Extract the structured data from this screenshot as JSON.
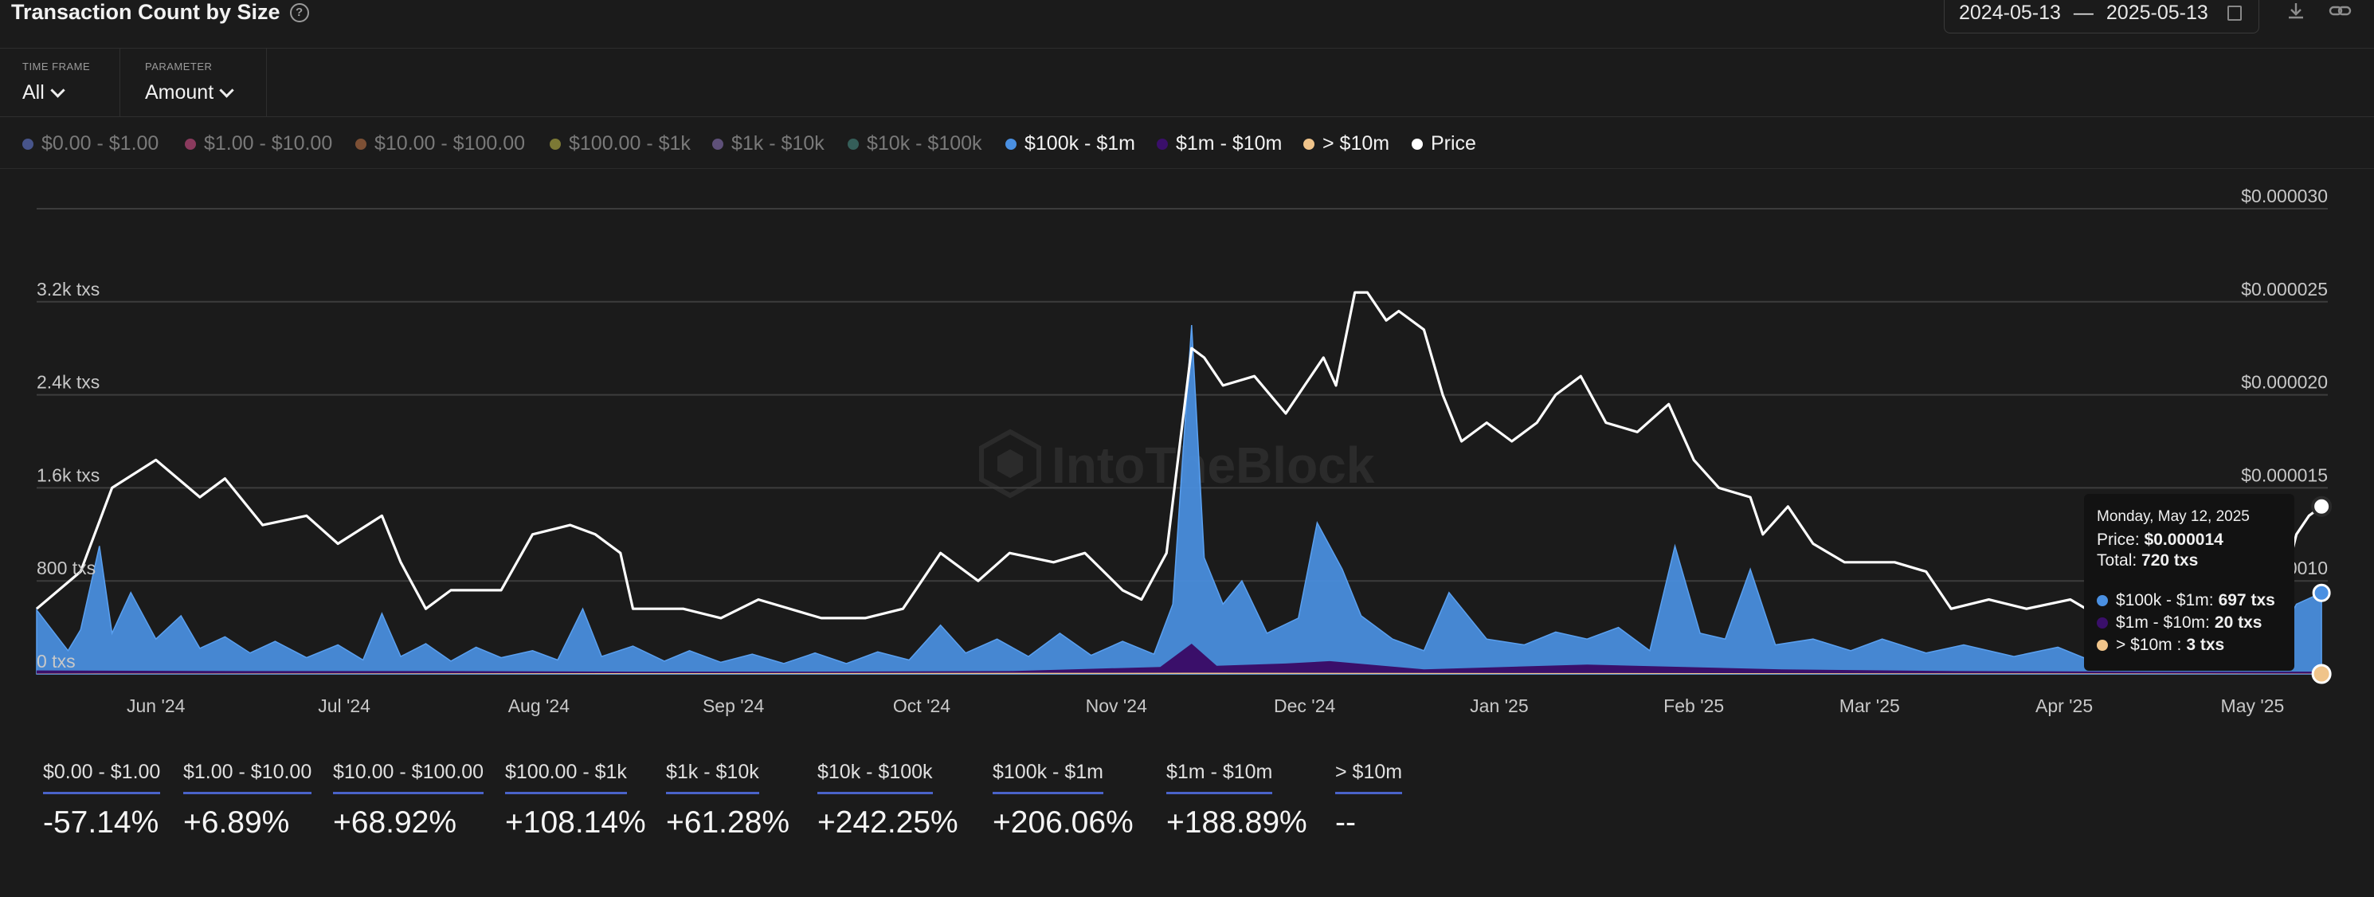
{
  "header": {
    "title": "Transaction Count by Size",
    "date_from": "2024-05-13",
    "date_sep": "—",
    "date_to": "2025-05-13"
  },
  "controls": {
    "time_frame_label": "TIME FRAME",
    "time_frame_value": "All",
    "parameter_label": "PARAMETER",
    "parameter_value": "Amount"
  },
  "legend": [
    {
      "label": "$0.00 - $1.00",
      "color": "#4f5f9e",
      "active": false
    },
    {
      "label": "$1.00 - $10.00",
      "color": "#9e3f68",
      "active": false
    },
    {
      "label": "$10.00 - $100.00",
      "color": "#8f5a3a",
      "active": false
    },
    {
      "label": "$100.00 - $1k",
      "color": "#8e8a3a",
      "active": false
    },
    {
      "label": "$1k - $10k",
      "color": "#6a5a8a",
      "active": false
    },
    {
      "label": "$10k - $100k",
      "color": "#3a6a64",
      "active": false
    },
    {
      "label": "$100k - $1m",
      "color": "#4a90e2",
      "active": true
    },
    {
      "label": "$1m - $10m",
      "color": "#3a0f6a",
      "active": true
    },
    {
      "label": "> $10m",
      "color": "#f0c48a",
      "active": true
    },
    {
      "label": "Price",
      "color": "#ffffff",
      "active": true
    }
  ],
  "tooltip": {
    "date": "Monday, May 12, 2025",
    "price_label": "Price:",
    "price_value": "$0.000014",
    "total_label": "Total:",
    "total_value": "720 txs",
    "rows": [
      {
        "label": "$100k - $1m:",
        "value": "697 txs",
        "color": "#4a90e2"
      },
      {
        "label": "$1m - $10m:",
        "value": "20 txs",
        "color": "#3a0f6a"
      },
      {
        "label": "> $10m :",
        "value": "3 txs",
        "color": "#f0c48a"
      }
    ]
  },
  "chart_data": {
    "type": "area",
    "watermark": "IntoTheBlock",
    "x_labels": [
      "Jun '24",
      "Jul '24",
      "Aug '24",
      "Sep '24",
      "Oct '24",
      "Nov '24",
      "Dec '24",
      "Jan '25",
      "Feb '25",
      "Mar '25",
      "Apr '25",
      "May '25"
    ],
    "x_range": [
      "2024-05-13",
      "2025-05-13"
    ],
    "y_left": {
      "ticks": [
        "0 txs",
        "800 txs",
        "1.6k txs",
        "2.4k txs",
        "3.2k txs"
      ],
      "range": [
        0,
        4000
      ]
    },
    "y_right": {
      "ticks": [
        "$0.000010",
        "$0.000015",
        "$0.000020",
        "$0.000025",
        "$0.000030"
      ],
      "range": [
        5e-06,
        3e-05
      ]
    },
    "series": [
      {
        "name": "$100k - $1m",
        "type": "area",
        "color": "#4a90e2",
        "points": [
          [
            "2024-05-13",
            550
          ],
          [
            "2024-05-18",
            200
          ],
          [
            "2024-05-20",
            380
          ],
          [
            "2024-05-23",
            1100
          ],
          [
            "2024-05-25",
            350
          ],
          [
            "2024-05-28",
            700
          ],
          [
            "2024-06-01",
            300
          ],
          [
            "2024-06-05",
            500
          ],
          [
            "2024-06-08",
            220
          ],
          [
            "2024-06-12",
            320
          ],
          [
            "2024-06-16",
            180
          ],
          [
            "2024-06-20",
            280
          ],
          [
            "2024-06-25",
            140
          ],
          [
            "2024-06-30",
            250
          ],
          [
            "2024-07-04",
            120
          ],
          [
            "2024-07-07",
            520
          ],
          [
            "2024-07-10",
            150
          ],
          [
            "2024-07-14",
            260
          ],
          [
            "2024-07-18",
            110
          ],
          [
            "2024-07-22",
            230
          ],
          [
            "2024-07-26",
            140
          ],
          [
            "2024-07-31",
            200
          ],
          [
            "2024-08-04",
            120
          ],
          [
            "2024-08-08",
            560
          ],
          [
            "2024-08-11",
            150
          ],
          [
            "2024-08-16",
            240
          ],
          [
            "2024-08-21",
            110
          ],
          [
            "2024-08-25",
            200
          ],
          [
            "2024-08-30",
            100
          ],
          [
            "2024-09-04",
            170
          ],
          [
            "2024-09-09",
            90
          ],
          [
            "2024-09-14",
            180
          ],
          [
            "2024-09-19",
            90
          ],
          [
            "2024-09-24",
            190
          ],
          [
            "2024-09-29",
            120
          ],
          [
            "2024-10-04",
            420
          ],
          [
            "2024-10-08",
            180
          ],
          [
            "2024-10-13",
            300
          ],
          [
            "2024-10-18",
            150
          ],
          [
            "2024-10-23",
            350
          ],
          [
            "2024-10-28",
            160
          ],
          [
            "2024-11-02",
            280
          ],
          [
            "2024-11-07",
            170
          ],
          [
            "2024-11-10",
            600
          ],
          [
            "2024-11-13",
            3000
          ],
          [
            "2024-11-15",
            1000
          ],
          [
            "2024-11-18",
            600
          ],
          [
            "2024-11-21",
            800
          ],
          [
            "2024-11-25",
            350
          ],
          [
            "2024-11-30",
            480
          ],
          [
            "2024-12-03",
            1300
          ],
          [
            "2024-12-07",
            900
          ],
          [
            "2024-12-10",
            500
          ],
          [
            "2024-12-15",
            300
          ],
          [
            "2024-12-20",
            200
          ],
          [
            "2024-12-24",
            700
          ],
          [
            "2024-12-30",
            300
          ],
          [
            "2025-01-05",
            250
          ],
          [
            "2025-01-10",
            360
          ],
          [
            "2025-01-15",
            300
          ],
          [
            "2025-01-20",
            400
          ],
          [
            "2025-01-25",
            200
          ],
          [
            "2025-01-29",
            1100
          ],
          [
            "2025-02-02",
            350
          ],
          [
            "2025-02-06",
            300
          ],
          [
            "2025-02-10",
            900
          ],
          [
            "2025-02-14",
            250
          ],
          [
            "2025-02-20",
            300
          ],
          [
            "2025-02-26",
            200
          ],
          [
            "2025-03-03",
            300
          ],
          [
            "2025-03-10",
            180
          ],
          [
            "2025-03-16",
            250
          ],
          [
            "2025-03-24",
            150
          ],
          [
            "2025-03-31",
            230
          ],
          [
            "2025-04-05",
            120
          ],
          [
            "2025-04-12",
            160
          ],
          [
            "2025-04-20",
            110
          ],
          [
            "2025-04-26",
            140
          ],
          [
            "2025-05-03",
            100
          ],
          [
            "2025-05-08",
            600
          ],
          [
            "2025-05-12",
            697
          ]
        ]
      },
      {
        "name": "$1m - $10m",
        "type": "area",
        "color": "#3a0f6a",
        "points": [
          [
            "2024-05-13",
            30
          ],
          [
            "2024-06-15",
            25
          ],
          [
            "2024-07-15",
            25
          ],
          [
            "2024-08-15",
            20
          ],
          [
            "2024-09-15",
            20
          ],
          [
            "2024-10-15",
            25
          ],
          [
            "2024-11-08",
            60
          ],
          [
            "2024-11-13",
            260
          ],
          [
            "2024-11-17",
            70
          ],
          [
            "2024-11-28",
            90
          ],
          [
            "2024-12-05",
            110
          ],
          [
            "2024-12-20",
            40
          ],
          [
            "2025-01-15",
            80
          ],
          [
            "2025-02-15",
            40
          ],
          [
            "2025-03-15",
            25
          ],
          [
            "2025-04-15",
            20
          ],
          [
            "2025-05-12",
            20
          ]
        ]
      },
      {
        "name": "> $10m",
        "type": "area",
        "color": "#f0c48a",
        "points": [
          [
            "2024-05-13",
            3
          ],
          [
            "2024-11-13",
            10
          ],
          [
            "2025-05-12",
            3
          ]
        ]
      },
      {
        "name": "Price",
        "type": "line",
        "axis": "right",
        "color": "#ffffff",
        "points": [
          [
            "2024-05-13",
            8.5e-06
          ],
          [
            "2024-05-20",
            1.05e-05
          ],
          [
            "2024-05-25",
            1.5e-05
          ],
          [
            "2024-06-01",
            1.65e-05
          ],
          [
            "2024-06-08",
            1.45e-05
          ],
          [
            "2024-06-12",
            1.55e-05
          ],
          [
            "2024-06-18",
            1.3e-05
          ],
          [
            "2024-06-25",
            1.35e-05
          ],
          [
            "2024-06-30",
            1.2e-05
          ],
          [
            "2024-07-07",
            1.35e-05
          ],
          [
            "2024-07-10",
            1.1e-05
          ],
          [
            "2024-07-14",
            8.5e-06
          ],
          [
            "2024-07-18",
            9.5e-06
          ],
          [
            "2024-07-26",
            9.5e-06
          ],
          [
            "2024-07-31",
            1.25e-05
          ],
          [
            "2024-08-06",
            1.3e-05
          ],
          [
            "2024-08-10",
            1.25e-05
          ],
          [
            "2024-08-14",
            1.15e-05
          ],
          [
            "2024-08-16",
            8.5e-06
          ],
          [
            "2024-08-24",
            8.5e-06
          ],
          [
            "2024-08-30",
            8e-06
          ],
          [
            "2024-09-05",
            9e-06
          ],
          [
            "2024-09-15",
            8e-06
          ],
          [
            "2024-09-22",
            8e-06
          ],
          [
            "2024-09-28",
            8.5e-06
          ],
          [
            "2024-10-04",
            1.15e-05
          ],
          [
            "2024-10-10",
            1e-05
          ],
          [
            "2024-10-15",
            1.15e-05
          ],
          [
            "2024-10-22",
            1.1e-05
          ],
          [
            "2024-10-27",
            1.15e-05
          ],
          [
            "2024-11-02",
            9.5e-06
          ],
          [
            "2024-11-05",
            9e-06
          ],
          [
            "2024-11-09",
            1.15e-05
          ],
          [
            "2024-11-13",
            2.25e-05
          ],
          [
            "2024-11-15",
            2.2e-05
          ],
          [
            "2024-11-18",
            2.05e-05
          ],
          [
            "2024-11-23",
            2.1e-05
          ],
          [
            "2024-11-28",
            1.9e-05
          ],
          [
            "2024-12-01",
            2.05e-05
          ],
          [
            "2024-12-04",
            2.2e-05
          ],
          [
            "2024-12-06",
            2.05e-05
          ],
          [
            "2024-12-09",
            2.55e-05
          ],
          [
            "2024-12-11",
            2.55e-05
          ],
          [
            "2024-12-14",
            2.4e-05
          ],
          [
            "2024-12-16",
            2.45e-05
          ],
          [
            "2024-12-20",
            2.35e-05
          ],
          [
            "2024-12-23",
            2e-05
          ],
          [
            "2024-12-26",
            1.75e-05
          ],
          [
            "2024-12-30",
            1.85e-05
          ],
          [
            "2025-01-03",
            1.75e-05
          ],
          [
            "2025-01-07",
            1.85e-05
          ],
          [
            "2025-01-10",
            2e-05
          ],
          [
            "2025-01-14",
            2.1e-05
          ],
          [
            "2025-01-18",
            1.85e-05
          ],
          [
            "2025-01-23",
            1.8e-05
          ],
          [
            "2025-01-28",
            1.95e-05
          ],
          [
            "2025-02-01",
            1.65e-05
          ],
          [
            "2025-02-05",
            1.5e-05
          ],
          [
            "2025-02-10",
            1.45e-05
          ],
          [
            "2025-02-12",
            1.25e-05
          ],
          [
            "2025-02-16",
            1.4e-05
          ],
          [
            "2025-02-20",
            1.2e-05
          ],
          [
            "2025-02-25",
            1.1e-05
          ],
          [
            "2025-03-05",
            1.1e-05
          ],
          [
            "2025-03-10",
            1.05e-05
          ],
          [
            "2025-03-14",
            8.5e-06
          ],
          [
            "2025-03-20",
            9e-06
          ],
          [
            "2025-03-26",
            8.5e-06
          ],
          [
            "2025-04-02",
            9e-06
          ],
          [
            "2025-04-07",
            8e-06
          ],
          [
            "2025-04-12",
            9.5e-06
          ],
          [
            "2025-04-16",
            1e-05
          ],
          [
            "2025-04-20",
            9e-06
          ],
          [
            "2025-04-25",
            9.5e-06
          ],
          [
            "2025-05-01",
            9e-06
          ],
          [
            "2025-05-05",
            8.5e-06
          ],
          [
            "2025-05-08",
            1.25e-05
          ],
          [
            "2025-05-10",
            1.35e-05
          ],
          [
            "2025-05-12",
            1.4e-05
          ]
        ]
      }
    ],
    "legend_position": "top",
    "grid": true
  },
  "stats": [
    {
      "label": "$0.00 - $1.00",
      "value": "-57.14%"
    },
    {
      "label": "$1.00 - $10.00",
      "value": "+6.89%"
    },
    {
      "label": "$10.00 - $100.00",
      "value": "+68.92%"
    },
    {
      "label": "$100.00 - $1k",
      "value": "+108.14%"
    },
    {
      "label": "$1k - $10k",
      "value": "+61.28%"
    },
    {
      "label": "$10k - $100k",
      "value": "+242.25%"
    },
    {
      "label": "$100k - $1m",
      "value": "+206.06%"
    },
    {
      "label": "$1m - $10m",
      "value": "+188.89%"
    },
    {
      "label": "> $10m",
      "value": "--"
    }
  ]
}
